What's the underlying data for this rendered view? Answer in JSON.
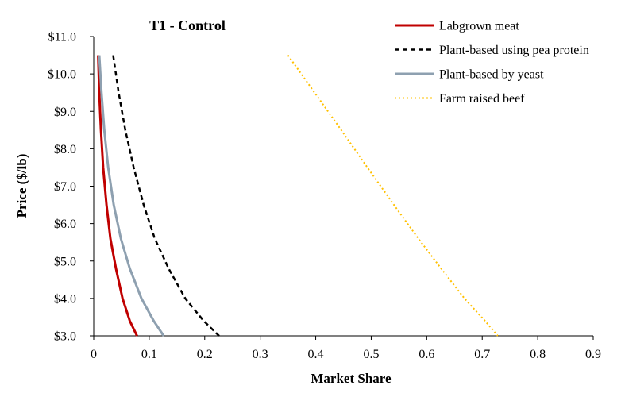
{
  "chart_data": {
    "type": "line",
    "title": "T1 - Control",
    "xlabel": "Market Share",
    "ylabel": "Price ($/lb)",
    "xlim": [
      0,
      0.9
    ],
    "ylim": [
      3.0,
      11.0
    ],
    "x_ticks": [
      "0",
      "0.1",
      "0.2",
      "0.3",
      "0.4",
      "0.5",
      "0.6",
      "0.7",
      "0.8",
      "0.9"
    ],
    "y_ticks": [
      "$3.0",
      "$4.0",
      "$5.0",
      "$6.0",
      "$7.0",
      "$8.0",
      "$9.0",
      "$10.0",
      "$11.0"
    ],
    "grid": false,
    "legend_position": "top-right",
    "series": [
      {
        "name": "Labgrown meat",
        "color": "#C00000",
        "style": "solid",
        "points": [
          [
            0.008,
            10.5
          ],
          [
            0.01,
            9.5
          ],
          [
            0.013,
            8.5
          ],
          [
            0.017,
            7.5
          ],
          [
            0.023,
            6.5
          ],
          [
            0.03,
            5.6
          ],
          [
            0.04,
            4.8
          ],
          [
            0.052,
            4.0
          ],
          [
            0.065,
            3.4
          ],
          [
            0.078,
            3.0
          ]
        ]
      },
      {
        "name": "Plant-based using pea protein",
        "color": "#000000",
        "style": "dashed",
        "points": [
          [
            0.035,
            10.5
          ],
          [
            0.045,
            9.5
          ],
          [
            0.057,
            8.5
          ],
          [
            0.072,
            7.5
          ],
          [
            0.09,
            6.5
          ],
          [
            0.11,
            5.6
          ],
          [
            0.135,
            4.8
          ],
          [
            0.165,
            4.0
          ],
          [
            0.198,
            3.4
          ],
          [
            0.226,
            3.0
          ]
        ]
      },
      {
        "name": "Plant-based by yeast",
        "color": "#8EA0B0",
        "style": "solid",
        "points": [
          [
            0.01,
            10.5
          ],
          [
            0.014,
            9.5
          ],
          [
            0.019,
            8.5
          ],
          [
            0.026,
            7.5
          ],
          [
            0.036,
            6.5
          ],
          [
            0.049,
            5.6
          ],
          [
            0.065,
            4.8
          ],
          [
            0.086,
            4.0
          ],
          [
            0.108,
            3.4
          ],
          [
            0.126,
            3.0
          ]
        ]
      },
      {
        "name": "Farm raised beef",
        "color": "#FFC000",
        "style": "dotted",
        "points": [
          [
            0.35,
            10.5
          ],
          [
            0.398,
            9.5
          ],
          [
            0.446,
            8.5
          ],
          [
            0.493,
            7.5
          ],
          [
            0.541,
            6.5
          ],
          [
            0.585,
            5.6
          ],
          [
            0.626,
            4.8
          ],
          [
            0.668,
            4.0
          ],
          [
            0.705,
            3.4
          ],
          [
            0.728,
            3.0
          ]
        ]
      }
    ]
  }
}
